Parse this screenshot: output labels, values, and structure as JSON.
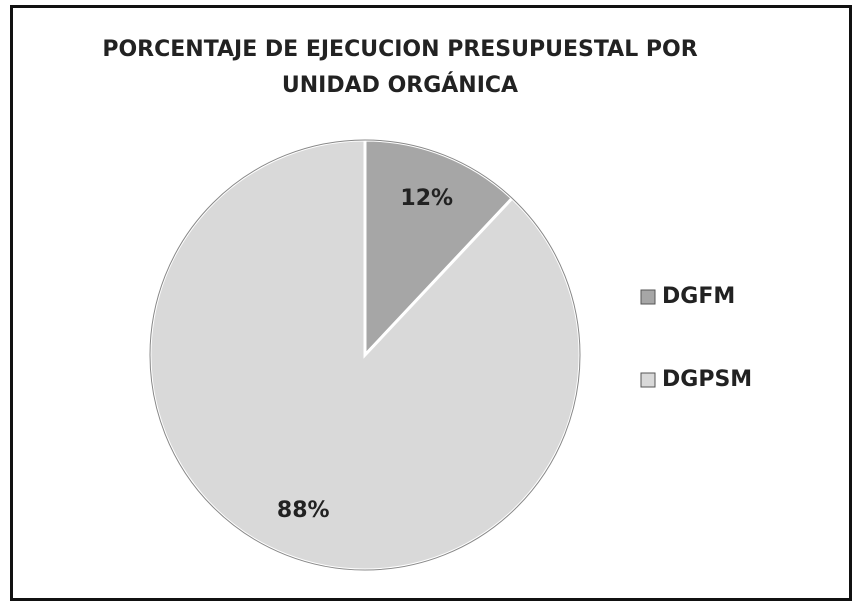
{
  "chart_data": {
    "type": "pie",
    "title": "PORCENTAJE DE EJECUCION PRESUPUESTAL POR UNIDAD ORGÁNICA",
    "categories": [
      "DGFM",
      "DGPSM"
    ],
    "values": [
      12,
      88
    ],
    "value_labels": [
      "12%",
      "88%"
    ],
    "colors": [
      "#a6a6a6",
      "#d9d9d9"
    ],
    "legend": "right"
  }
}
